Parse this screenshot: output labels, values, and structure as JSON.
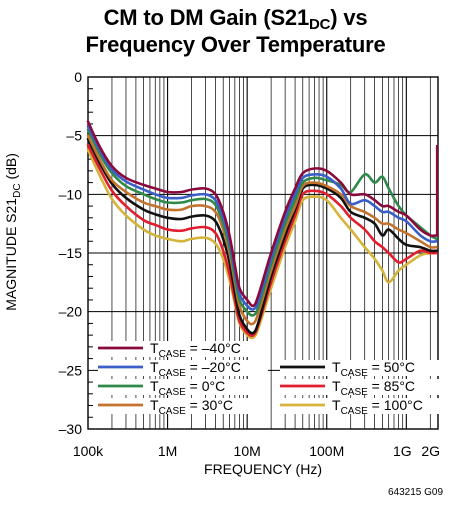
{
  "chart_data": {
    "type": "line",
    "title_line1": "CM to DM Gain (S21",
    "title_sub": "DC",
    "title_line1_end": ") vs",
    "title_line2": "Frequency Over Temperature",
    "ylabel_main": "MAGNITUDE S21",
    "ylabel_sub": "DC",
    "ylabel_unit": " (dB)",
    "xlabel": "FREQUENCY (Hz)",
    "figure_id": "643215 G09",
    "x_scale": "log",
    "xlim": [
      100000,
      2500000000
    ],
    "ylim": [
      -30,
      0
    ],
    "grid": true,
    "legend_placement": "bottom-left",
    "x_ticks": [
      {
        "value": 100000,
        "label": "100k"
      },
      {
        "value": 1000000,
        "label": "1M"
      },
      {
        "value": 10000000,
        "label": "10M"
      },
      {
        "value": 100000000,
        "label": "100M"
      },
      {
        "value": 1000000000,
        "label": "1G"
      },
      {
        "value": 2000000000,
        "label": "2G"
      }
    ],
    "y_ticks": [
      {
        "value": 0,
        "label": "0"
      },
      {
        "value": -5,
        "label": "–5"
      },
      {
        "value": -10,
        "label": "–10"
      },
      {
        "value": -15,
        "label": "–15"
      },
      {
        "value": -20,
        "label": "–20"
      },
      {
        "value": -25,
        "label": "–25"
      },
      {
        "value": -30,
        "label": "–30"
      }
    ],
    "series": [
      {
        "name_main": "T",
        "name_sub": "CASE",
        "name_tail": " = –40°C",
        "color": "#8b0a3c",
        "points": [
          [
            100000,
            -3.8
          ],
          [
            120000,
            -5.0
          ],
          [
            150000,
            -6.3
          ],
          [
            200000,
            -7.6
          ],
          [
            300000,
            -8.6
          ],
          [
            500000,
            -9.2
          ],
          [
            700000,
            -9.5
          ],
          [
            1000000,
            -9.8
          ],
          [
            1500000,
            -9.8
          ],
          [
            2000000,
            -9.6
          ],
          [
            3000000,
            -9.5
          ],
          [
            4000000,
            -10.0
          ],
          [
            5000000,
            -11.5
          ],
          [
            6000000,
            -13.5
          ],
          [
            7000000,
            -16.0
          ],
          [
            8000000,
            -18.0
          ],
          [
            10000000,
            -19.0
          ],
          [
            12000000,
            -19.5
          ],
          [
            14000000,
            -18.5
          ],
          [
            20000000,
            -15.0
          ],
          [
            30000000,
            -11.5
          ],
          [
            40000000,
            -9.5
          ],
          [
            50000000,
            -8.2
          ],
          [
            70000000,
            -7.8
          ],
          [
            100000000,
            -8.0
          ],
          [
            150000000,
            -9.0
          ],
          [
            200000000,
            -10.0
          ],
          [
            300000000,
            -10.0
          ],
          [
            400000000,
            -10.5
          ],
          [
            500000000,
            -11.0
          ],
          [
            600000000,
            -11.0
          ],
          [
            800000000,
            -11.5
          ],
          [
            1000000000,
            -11.8
          ],
          [
            1500000000,
            -13.0
          ],
          [
            2000000000,
            -13.5
          ],
          [
            2400000000,
            -13.5
          ]
        ]
      },
      {
        "name_main": "T",
        "name_sub": "CASE",
        "name_tail": " = –20°C",
        "color": "#3a5fc9",
        "points": [
          [
            100000,
            -4.2
          ],
          [
            120000,
            -5.3
          ],
          [
            150000,
            -6.6
          ],
          [
            200000,
            -7.9
          ],
          [
            300000,
            -8.9
          ],
          [
            500000,
            -9.6
          ],
          [
            700000,
            -10.0
          ],
          [
            1000000,
            -10.3
          ],
          [
            1500000,
            -10.3
          ],
          [
            2000000,
            -10.1
          ],
          [
            3000000,
            -10.0
          ],
          [
            4000000,
            -10.5
          ],
          [
            5000000,
            -12.0
          ],
          [
            6000000,
            -14.0
          ],
          [
            7000000,
            -16.5
          ],
          [
            8000000,
            -18.5
          ],
          [
            10000000,
            -19.5
          ],
          [
            12000000,
            -19.8
          ],
          [
            14000000,
            -19.0
          ],
          [
            20000000,
            -15.5
          ],
          [
            30000000,
            -12.0
          ],
          [
            40000000,
            -10.0
          ],
          [
            50000000,
            -8.6
          ],
          [
            70000000,
            -8.3
          ],
          [
            100000000,
            -8.5
          ],
          [
            150000000,
            -9.5
          ],
          [
            200000000,
            -10.8
          ],
          [
            300000000,
            -10.5
          ],
          [
            400000000,
            -11.0
          ],
          [
            500000000,
            -11.5
          ],
          [
            600000000,
            -11.5
          ],
          [
            800000000,
            -12.0
          ],
          [
            1000000000,
            -12.3
          ],
          [
            1500000000,
            -13.5
          ],
          [
            2000000000,
            -14.0
          ],
          [
            2400000000,
            -14.0
          ]
        ]
      },
      {
        "name_main": "T",
        "name_sub": "CASE",
        "name_tail": " = 0°C",
        "color": "#2f8a4a",
        "points": [
          [
            100000,
            -4.5
          ],
          [
            120000,
            -5.6
          ],
          [
            150000,
            -6.9
          ],
          [
            200000,
            -8.2
          ],
          [
            300000,
            -9.3
          ],
          [
            500000,
            -10.0
          ],
          [
            700000,
            -10.4
          ],
          [
            1000000,
            -10.7
          ],
          [
            1500000,
            -10.7
          ],
          [
            2000000,
            -10.5
          ],
          [
            3000000,
            -10.4
          ],
          [
            4000000,
            -10.9
          ],
          [
            5000000,
            -12.5
          ],
          [
            6000000,
            -14.5
          ],
          [
            7000000,
            -17.0
          ],
          [
            8000000,
            -19.0
          ],
          [
            10000000,
            -20.0
          ],
          [
            12000000,
            -20.3
          ],
          [
            14000000,
            -19.5
          ],
          [
            20000000,
            -16.0
          ],
          [
            30000000,
            -12.5
          ],
          [
            40000000,
            -10.5
          ],
          [
            50000000,
            -9.0
          ],
          [
            70000000,
            -8.6
          ],
          [
            100000000,
            -8.8
          ],
          [
            150000000,
            -9.2
          ],
          [
            200000000,
            -9.8
          ],
          [
            300000000,
            -8.3
          ],
          [
            400000000,
            -9.0
          ],
          [
            500000000,
            -8.5
          ],
          [
            600000000,
            -9.5
          ],
          [
            800000000,
            -11.0
          ],
          [
            1000000000,
            -11.8
          ],
          [
            1500000000,
            -12.8
          ],
          [
            2000000000,
            -13.5
          ],
          [
            2400000000,
            -13.8
          ]
        ]
      },
      {
        "name_main": "T",
        "name_sub": "CASE",
        "name_tail": " = 30°C",
        "color": "#c2742e",
        "points": [
          [
            100000,
            -5.0
          ],
          [
            120000,
            -6.1
          ],
          [
            150000,
            -7.4
          ],
          [
            200000,
            -8.8
          ],
          [
            300000,
            -9.8
          ],
          [
            500000,
            -10.7
          ],
          [
            700000,
            -11.0
          ],
          [
            1000000,
            -11.3
          ],
          [
            1500000,
            -11.3
          ],
          [
            2000000,
            -11.0
          ],
          [
            3000000,
            -11.0
          ],
          [
            4000000,
            -11.5
          ],
          [
            5000000,
            -13.0
          ],
          [
            6000000,
            -15.0
          ],
          [
            7000000,
            -17.5
          ],
          [
            8000000,
            -19.5
          ],
          [
            10000000,
            -20.8
          ],
          [
            12000000,
            -21.0
          ],
          [
            14000000,
            -20.0
          ],
          [
            20000000,
            -16.5
          ],
          [
            30000000,
            -13.0
          ],
          [
            40000000,
            -11.0
          ],
          [
            50000000,
            -9.3
          ],
          [
            70000000,
            -9.0
          ],
          [
            100000000,
            -9.3
          ],
          [
            150000000,
            -10.0
          ],
          [
            200000000,
            -11.0
          ],
          [
            300000000,
            -11.5
          ],
          [
            400000000,
            -12.0
          ],
          [
            500000000,
            -12.5
          ],
          [
            600000000,
            -12.5
          ],
          [
            800000000,
            -13.0
          ],
          [
            1000000000,
            -13.3
          ],
          [
            1500000000,
            -14.0
          ],
          [
            2000000000,
            -14.5
          ],
          [
            2400000000,
            -14.5
          ]
        ]
      },
      {
        "name_main": "T",
        "name_sub": "CASE",
        "name_tail": " = 50°C",
        "color": "#111111",
        "points": [
          [
            100000,
            -5.3
          ],
          [
            120000,
            -6.4
          ],
          [
            150000,
            -7.7
          ],
          [
            200000,
            -9.1
          ],
          [
            300000,
            -10.3
          ],
          [
            500000,
            -11.3
          ],
          [
            700000,
            -11.7
          ],
          [
            1000000,
            -12.0
          ],
          [
            1500000,
            -12.1
          ],
          [
            2000000,
            -11.9
          ],
          [
            3000000,
            -11.8
          ],
          [
            4000000,
            -12.3
          ],
          [
            5000000,
            -13.8
          ],
          [
            6000000,
            -15.8
          ],
          [
            7000000,
            -18.3
          ],
          [
            8000000,
            -20.3
          ],
          [
            10000000,
            -21.5
          ],
          [
            12000000,
            -21.8
          ],
          [
            14000000,
            -20.8
          ],
          [
            20000000,
            -17.0
          ],
          [
            30000000,
            -13.5
          ],
          [
            40000000,
            -11.3
          ],
          [
            50000000,
            -9.5
          ],
          [
            70000000,
            -9.2
          ],
          [
            100000000,
            -9.5
          ],
          [
            150000000,
            -10.3
          ],
          [
            200000000,
            -11.5
          ],
          [
            300000000,
            -12.0
          ],
          [
            400000000,
            -12.5
          ],
          [
            500000000,
            -13.5
          ],
          [
            600000000,
            -13.0
          ],
          [
            800000000,
            -13.8
          ],
          [
            1000000000,
            -14.3
          ],
          [
            1500000000,
            -14.5
          ],
          [
            2000000000,
            -14.8
          ],
          [
            2400000000,
            -14.8
          ]
        ]
      },
      {
        "name_main": "T",
        "name_sub": "CASE",
        "name_tail": " = 85°C",
        "color": "#e01e2e",
        "points": [
          [
            100000,
            -5.8
          ],
          [
            120000,
            -6.9
          ],
          [
            150000,
            -8.2
          ],
          [
            200000,
            -9.7
          ],
          [
            300000,
            -11.0
          ],
          [
            500000,
            -12.2
          ],
          [
            700000,
            -12.6
          ],
          [
            1000000,
            -13.0
          ],
          [
            1500000,
            -13.1
          ],
          [
            2000000,
            -12.9
          ],
          [
            3000000,
            -12.8
          ],
          [
            4000000,
            -13.3
          ],
          [
            5000000,
            -14.8
          ],
          [
            6000000,
            -16.8
          ],
          [
            7000000,
            -19.0
          ],
          [
            8000000,
            -20.8
          ],
          [
            10000000,
            -21.8
          ],
          [
            12000000,
            -22.0
          ],
          [
            14000000,
            -21.0
          ],
          [
            20000000,
            -17.5
          ],
          [
            30000000,
            -14.0
          ],
          [
            40000000,
            -11.8
          ],
          [
            50000000,
            -10.0
          ],
          [
            70000000,
            -9.7
          ],
          [
            100000000,
            -10.0
          ],
          [
            150000000,
            -11.0
          ],
          [
            200000000,
            -12.0
          ],
          [
            300000000,
            -13.0
          ],
          [
            400000000,
            -14.0
          ],
          [
            500000000,
            -14.5
          ],
          [
            600000000,
            -15.0
          ],
          [
            800000000,
            -15.8
          ],
          [
            1000000000,
            -15.5
          ],
          [
            1500000000,
            -14.8
          ],
          [
            2000000000,
            -15.0
          ],
          [
            2400000000,
            -15.0
          ]
        ]
      },
      {
        "name_main": "T",
        "name_sub": "CASE",
        "name_tail": " = 100°C",
        "color": "#d4b43a",
        "points": [
          [
            100000,
            -6.2
          ],
          [
            120000,
            -7.4
          ],
          [
            150000,
            -8.8
          ],
          [
            200000,
            -10.4
          ],
          [
            300000,
            -11.8
          ],
          [
            500000,
            -13.0
          ],
          [
            700000,
            -13.5
          ],
          [
            1000000,
            -13.8
          ],
          [
            1500000,
            -14.0
          ],
          [
            2000000,
            -13.8
          ],
          [
            3000000,
            -13.7
          ],
          [
            4000000,
            -14.2
          ],
          [
            5000000,
            -15.5
          ],
          [
            6000000,
            -17.3
          ],
          [
            7000000,
            -19.3
          ],
          [
            8000000,
            -21.0
          ],
          [
            10000000,
            -22.0
          ],
          [
            12000000,
            -22.2
          ],
          [
            14000000,
            -21.3
          ],
          [
            20000000,
            -18.0
          ],
          [
            30000000,
            -14.5
          ],
          [
            40000000,
            -12.3
          ],
          [
            50000000,
            -10.5
          ],
          [
            70000000,
            -10.2
          ],
          [
            100000000,
            -10.5
          ],
          [
            150000000,
            -12.0
          ],
          [
            200000000,
            -13.0
          ],
          [
            300000000,
            -14.5
          ],
          [
            400000000,
            -15.5
          ],
          [
            500000000,
            -16.5
          ],
          [
            600000000,
            -17.5
          ],
          [
            800000000,
            -16.5
          ],
          [
            1000000000,
            -16.0
          ],
          [
            1500000000,
            -15.2
          ],
          [
            2000000000,
            -15.0
          ],
          [
            2400000000,
            -14.8
          ]
        ]
      }
    ]
  }
}
